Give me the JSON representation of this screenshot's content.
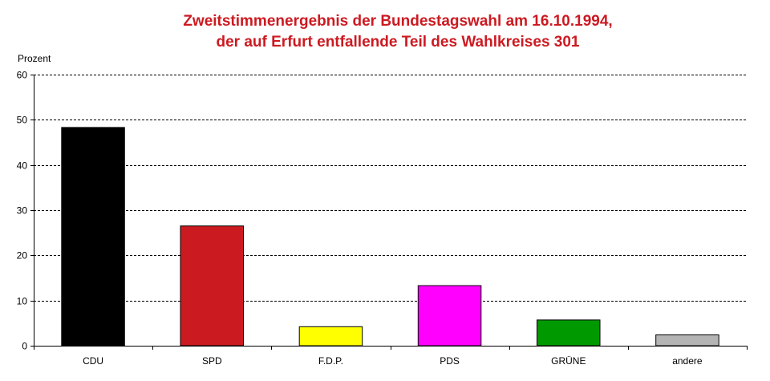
{
  "chart_data": {
    "type": "bar",
    "title": [
      "Zweitstimmenergebnis der Bundestagswahl am 16.10.1994,",
      "der auf Erfurt entfallende Teil des Wahlkreises 301"
    ],
    "ylabel": "Prozent",
    "xlabel": "",
    "categories": [
      "CDU",
      "SPD",
      "F.D.P.",
      "PDS",
      "GRÜNE",
      "andere"
    ],
    "values": [
      48.3,
      26.5,
      4.2,
      13.3,
      5.7,
      2.4
    ],
    "colors": [
      "#000000",
      "#cc1a21",
      "#ffff00",
      "#ff00ff",
      "#009900",
      "#b4b4b4"
    ],
    "ylim": [
      0,
      60
    ],
    "yticks": [
      0,
      10,
      20,
      30,
      40,
      50,
      60
    ],
    "grid": true,
    "grid_style": "dashed",
    "legend": "none",
    "title_color": "#cc1a21"
  }
}
